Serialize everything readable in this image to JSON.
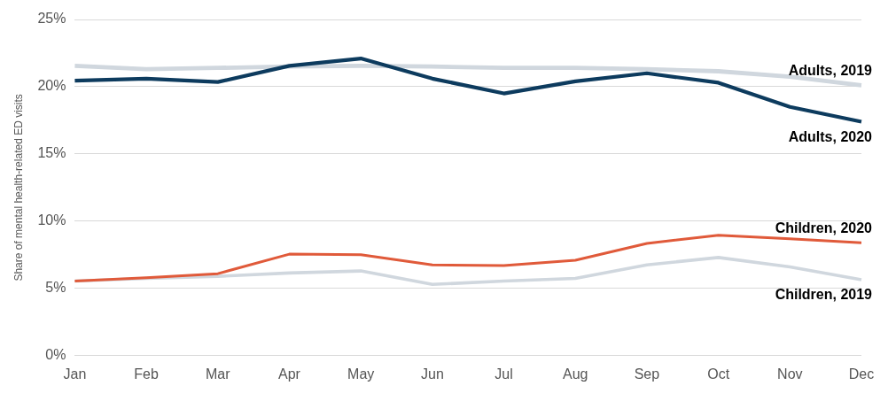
{
  "chart_data": {
    "type": "line",
    "ylabel": "Share of mental health-related ED visits",
    "categories": [
      "Jan",
      "Feb",
      "Mar",
      "Apr",
      "May",
      "Jun",
      "Jul",
      "Aug",
      "Sep",
      "Oct",
      "Nov",
      "Dec"
    ],
    "series": [
      {
        "name": "Adults, 2019",
        "color": "#d0d7de",
        "values": [
          21.55,
          21.3,
          21.4,
          21.5,
          21.55,
          21.5,
          21.4,
          21.4,
          21.3,
          21.15,
          20.75,
          20.1
        ]
      },
      {
        "name": "Adults, 2020",
        "color": "#0d3b5e",
        "values": [
          20.45,
          20.6,
          20.35,
          21.55,
          22.1,
          20.6,
          19.5,
          20.4,
          21.0,
          20.3,
          18.5,
          17.4
        ]
      },
      {
        "name": "Children, 2019",
        "color": "#d0d7de",
        "values": [
          5.55,
          5.75,
          5.9,
          6.15,
          6.3,
          5.3,
          5.55,
          5.75,
          6.75,
          7.3,
          6.6,
          5.65
        ]
      },
      {
        "name": "Children, 2020",
        "color": "#e05a3a",
        "values": [
          5.55,
          5.8,
          6.1,
          7.55,
          7.5,
          6.75,
          6.7,
          7.1,
          8.35,
          8.95,
          8.7,
          8.4
        ]
      }
    ],
    "ylim": [
      0,
      25
    ],
    "yticks": [
      {
        "value": 0,
        "label": "0%"
      },
      {
        "value": 5,
        "label": "5%"
      },
      {
        "value": 10,
        "label": "10%"
      },
      {
        "value": 15,
        "label": "15%"
      },
      {
        "value": 20,
        "label": "20%"
      },
      {
        "value": 25,
        "label": "25%"
      }
    ],
    "grid": "y",
    "legend": false,
    "marker": "none",
    "line_style": "solid"
  }
}
